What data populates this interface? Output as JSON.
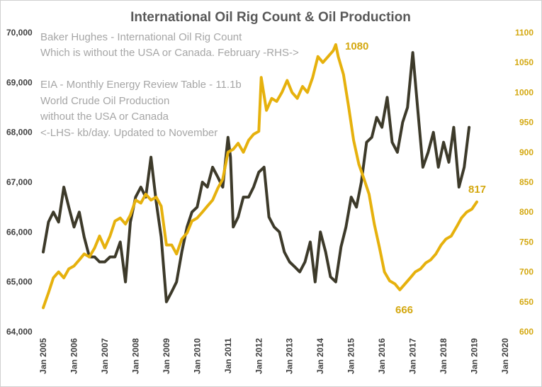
{
  "chart_data": {
    "type": "line",
    "title": "International Oil Rig Count & Oil Production",
    "notes": {
      "rig_note_1": "Baker Hughes - International Oil Rig Count",
      "rig_note_2": "Which is without the USA or Canada. February -RHS->",
      "prod_note_1": "EIA - Monthly Energy Review Table - 11.1b",
      "prod_note_2": "World Crude Oil Production",
      "prod_note_3": "without the USA or Canada",
      "prod_note_4": "<-LHS- kb/day. Updated to November"
    },
    "x_ticks": [
      "Jan 2005",
      "Jan 2006",
      "Jan 2007",
      "Jan 2008",
      "Jan 2009",
      "Jan 2010",
      "Jan 2011",
      "Jan 2012",
      "Jan 2013",
      "Jan 2014",
      "Jan 2015",
      "Jan 2016",
      "Jan 2017",
      "Jan 2018",
      "Jan 2019",
      "Jan 2020"
    ],
    "x_range": [
      2005,
      2020
    ],
    "left_axis": {
      "ticks": [
        "64,000",
        "65,000",
        "66,000",
        "67,000",
        "68,000",
        "69,000",
        "70,000"
      ],
      "range": [
        64000,
        70000
      ]
    },
    "right_axis": {
      "ticks": [
        "600",
        "650",
        "700",
        "750",
        "800",
        "850",
        "900",
        "950",
        "1000",
        "1050",
        "1100"
      ],
      "range": [
        600,
        1100
      ]
    },
    "colors": {
      "production": "#3d3a2a",
      "rigs": "#e6b10d",
      "callout": "#d4a810"
    },
    "series": [
      {
        "name": "World Crude Oil Production ex USA & Canada (kb/day, LHS)",
        "axis": "left",
        "x": [
          2005.0,
          2005.17,
          2005.33,
          2005.5,
          2005.67,
          2005.83,
          2006.0,
          2006.17,
          2006.33,
          2006.5,
          2006.67,
          2006.83,
          2007.0,
          2007.17,
          2007.33,
          2007.5,
          2007.67,
          2007.83,
          2008.0,
          2008.17,
          2008.33,
          2008.5,
          2008.67,
          2008.83,
          2009.0,
          2009.17,
          2009.33,
          2009.5,
          2009.67,
          2009.83,
          2010.0,
          2010.17,
          2010.33,
          2010.5,
          2010.67,
          2010.83,
          2011.0,
          2011.08,
          2011.17,
          2011.33,
          2011.5,
          2011.67,
          2011.83,
          2012.0,
          2012.17,
          2012.33,
          2012.5,
          2012.67,
          2012.83,
          2013.0,
          2013.17,
          2013.33,
          2013.5,
          2013.67,
          2013.83,
          2014.0,
          2014.17,
          2014.33,
          2014.5,
          2014.67,
          2014.83,
          2015.0,
          2015.17,
          2015.33,
          2015.5,
          2015.67,
          2015.83,
          2016.0,
          2016.17,
          2016.33,
          2016.5,
          2016.67,
          2016.83,
          2017.0,
          2017.17,
          2017.33,
          2017.5,
          2017.67,
          2017.83,
          2018.0,
          2018.17,
          2018.33,
          2018.5,
          2018.67,
          2018.83
        ],
        "values": [
          65600,
          66200,
          66400,
          66200,
          66900,
          66500,
          66100,
          66400,
          65900,
          65500,
          65500,
          65400,
          65400,
          65500,
          65500,
          65800,
          65000,
          66200,
          66700,
          66900,
          66700,
          67500,
          66600,
          65900,
          64600,
          64800,
          65000,
          65600,
          66100,
          66400,
          66500,
          67000,
          66900,
          67300,
          67100,
          66900,
          67900,
          67500,
          66100,
          66300,
          66700,
          66700,
          66900,
          67200,
          67300,
          66300,
          66100,
          66000,
          65600,
          65400,
          65300,
          65200,
          65400,
          65800,
          65000,
          66000,
          65600,
          65100,
          65000,
          65700,
          66100,
          66700,
          66500,
          67000,
          67800,
          67900,
          68300,
          68100,
          68700,
          67800,
          67600,
          68200,
          68500,
          69600,
          68400,
          67300,
          67600,
          68000,
          67300,
          67800,
          67400,
          68100,
          66900,
          67300,
          68100
        ]
      },
      {
        "name": "International Oil Rig Count (RHS)",
        "axis": "right",
        "x": [
          2005.0,
          2005.17,
          2005.33,
          2005.5,
          2005.67,
          2005.83,
          2006.0,
          2006.17,
          2006.33,
          2006.5,
          2006.67,
          2006.83,
          2007.0,
          2007.17,
          2007.33,
          2007.5,
          2007.67,
          2007.83,
          2008.0,
          2008.17,
          2008.33,
          2008.5,
          2008.67,
          2008.83,
          2009.0,
          2009.17,
          2009.33,
          2009.5,
          2009.67,
          2009.83,
          2010.0,
          2010.17,
          2010.33,
          2010.5,
          2010.67,
          2010.83,
          2011.0,
          2011.17,
          2011.33,
          2011.5,
          2011.67,
          2011.83,
          2012.0,
          2012.08,
          2012.25,
          2012.42,
          2012.58,
          2012.75,
          2012.92,
          2013.08,
          2013.25,
          2013.42,
          2013.58,
          2013.75,
          2013.92,
          2014.08,
          2014.25,
          2014.42,
          2014.5,
          2014.58,
          2014.75,
          2014.92,
          2015.08,
          2015.25,
          2015.42,
          2015.58,
          2015.75,
          2015.92,
          2016.08,
          2016.25,
          2016.42,
          2016.58,
          2016.75,
          2016.92,
          2017.08,
          2017.25,
          2017.42,
          2017.58,
          2017.75,
          2017.92,
          2018.08,
          2018.25,
          2018.42,
          2018.58,
          2018.75,
          2018.92,
          2019.08
        ],
        "values": [
          640,
          665,
          690,
          700,
          690,
          705,
          710,
          720,
          730,
          725,
          740,
          760,
          740,
          760,
          785,
          790,
          780,
          795,
          820,
          815,
          830,
          820,
          825,
          810,
          745,
          745,
          730,
          755,
          765,
          785,
          790,
          800,
          810,
          820,
          840,
          855,
          900,
          905,
          915,
          900,
          920,
          930,
          935,
          1025,
          970,
          990,
          985,
          1000,
          1020,
          1000,
          990,
          1010,
          1000,
          1025,
          1060,
          1050,
          1060,
          1070,
          1080,
          1060,
          1030,
          975,
          920,
          880,
          855,
          830,
          780,
          740,
          700,
          685,
          680,
          670,
          680,
          690,
          700,
          705,
          715,
          720,
          730,
          745,
          755,
          760,
          775,
          790,
          800,
          805,
          817
        ]
      }
    ],
    "annotations": {
      "peak": "1080",
      "trough": "666",
      "last": "817"
    }
  }
}
